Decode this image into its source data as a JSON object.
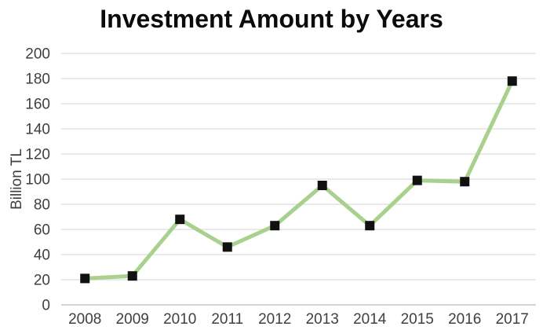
{
  "chart_data": {
    "type": "line",
    "title": "Investment Amount by Years",
    "xlabel": "",
    "ylabel": "Billion TL",
    "categories": [
      "2008",
      "2009",
      "2010",
      "2011",
      "2012",
      "2013",
      "2014",
      "2015",
      "2016",
      "2017"
    ],
    "values": [
      21,
      23,
      68,
      46,
      63,
      95,
      63,
      99,
      98,
      178
    ],
    "ylim": [
      0,
      200
    ],
    "yticks": [
      0,
      20,
      40,
      60,
      80,
      100,
      120,
      140,
      160,
      180,
      200
    ],
    "grid": "horizontal",
    "legend_position": "none",
    "colors": {
      "line": "#a9d18e",
      "marker": "#111111",
      "gridline": "#e2e2e2",
      "zero_line": "#c6c6c6",
      "tick_label": "#3f3f3f",
      "title": "#0b0b0b"
    }
  }
}
